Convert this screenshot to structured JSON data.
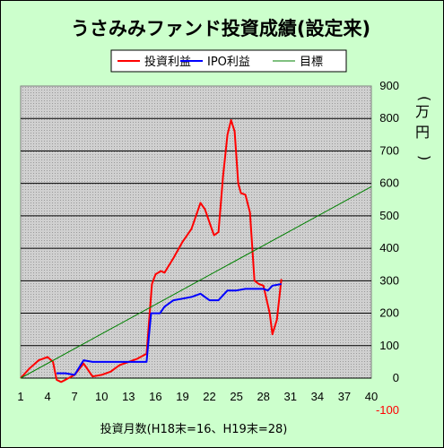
{
  "chart_data": {
    "type": "line",
    "title": "うさみみファンド投資成績(設定来)",
    "xlabel": "投資月数(H18末=16、H19末=28)",
    "ylabel": "(万円)",
    "x_ticks": [
      1,
      4,
      7,
      10,
      13,
      16,
      19,
      22,
      25,
      28,
      31,
      34,
      37,
      40
    ],
    "y_ticks": [
      -100,
      0,
      100,
      200,
      300,
      400,
      500,
      600,
      700,
      800,
      900
    ],
    "xlim": [
      1,
      40
    ],
    "ylim": [
      -100,
      900
    ],
    "grid": "horizontal",
    "legend_position": "top",
    "series": [
      {
        "name": "投資利益",
        "color": "#ff0000",
        "points": [
          [
            1,
            0
          ],
          [
            2,
            30
          ],
          [
            3,
            55
          ],
          [
            4,
            65
          ],
          [
            4.6,
            50
          ],
          [
            5,
            -5
          ],
          [
            5.5,
            -12
          ],
          [
            6,
            -5
          ],
          [
            7,
            10
          ],
          [
            8,
            45
          ],
          [
            9,
            5
          ],
          [
            10,
            10
          ],
          [
            11,
            20
          ],
          [
            12,
            40
          ],
          [
            13,
            50
          ],
          [
            14,
            60
          ],
          [
            15,
            75
          ],
          [
            15.6,
            290
          ],
          [
            16,
            320
          ],
          [
            16.6,
            330
          ],
          [
            17,
            325
          ],
          [
            18,
            370
          ],
          [
            19,
            420
          ],
          [
            20,
            460
          ],
          [
            20.5,
            500
          ],
          [
            21,
            540
          ],
          [
            21.5,
            520
          ],
          [
            22,
            480
          ],
          [
            22.5,
            440
          ],
          [
            23,
            450
          ],
          [
            23.5,
            620
          ],
          [
            24,
            750
          ],
          [
            24.4,
            795
          ],
          [
            24.8,
            760
          ],
          [
            25.2,
            600
          ],
          [
            25.5,
            570
          ],
          [
            26,
            565
          ],
          [
            26.5,
            510
          ],
          [
            27,
            300
          ],
          [
            27.5,
            290
          ],
          [
            28,
            285
          ],
          [
            28.7,
            200
          ],
          [
            29,
            135
          ],
          [
            29.5,
            180
          ],
          [
            30,
            305
          ]
        ]
      },
      {
        "name": "IPO利益",
        "color": "#0000ff",
        "points": [
          [
            5,
            15
          ],
          [
            6,
            15
          ],
          [
            7,
            10
          ],
          [
            8,
            55
          ],
          [
            9,
            50
          ],
          [
            10,
            50
          ],
          [
            11,
            50
          ],
          [
            12,
            50
          ],
          [
            13,
            50
          ],
          [
            14,
            50
          ],
          [
            15,
            50
          ],
          [
            15.5,
            200
          ],
          [
            16,
            200
          ],
          [
            16.5,
            200
          ],
          [
            17,
            220
          ],
          [
            18,
            240
          ],
          [
            19,
            245
          ],
          [
            20,
            250
          ],
          [
            21,
            260
          ],
          [
            22,
            240
          ],
          [
            23,
            240
          ],
          [
            24,
            270
          ],
          [
            25,
            270
          ],
          [
            26,
            275
          ],
          [
            27,
            275
          ],
          [
            28,
            275
          ],
          [
            28.5,
            270
          ],
          [
            29,
            285
          ],
          [
            30,
            290
          ]
        ]
      },
      {
        "name": "目標",
        "color": "#008000",
        "points": [
          [
            1,
            0
          ],
          [
            40,
            590
          ]
        ]
      }
    ]
  }
}
